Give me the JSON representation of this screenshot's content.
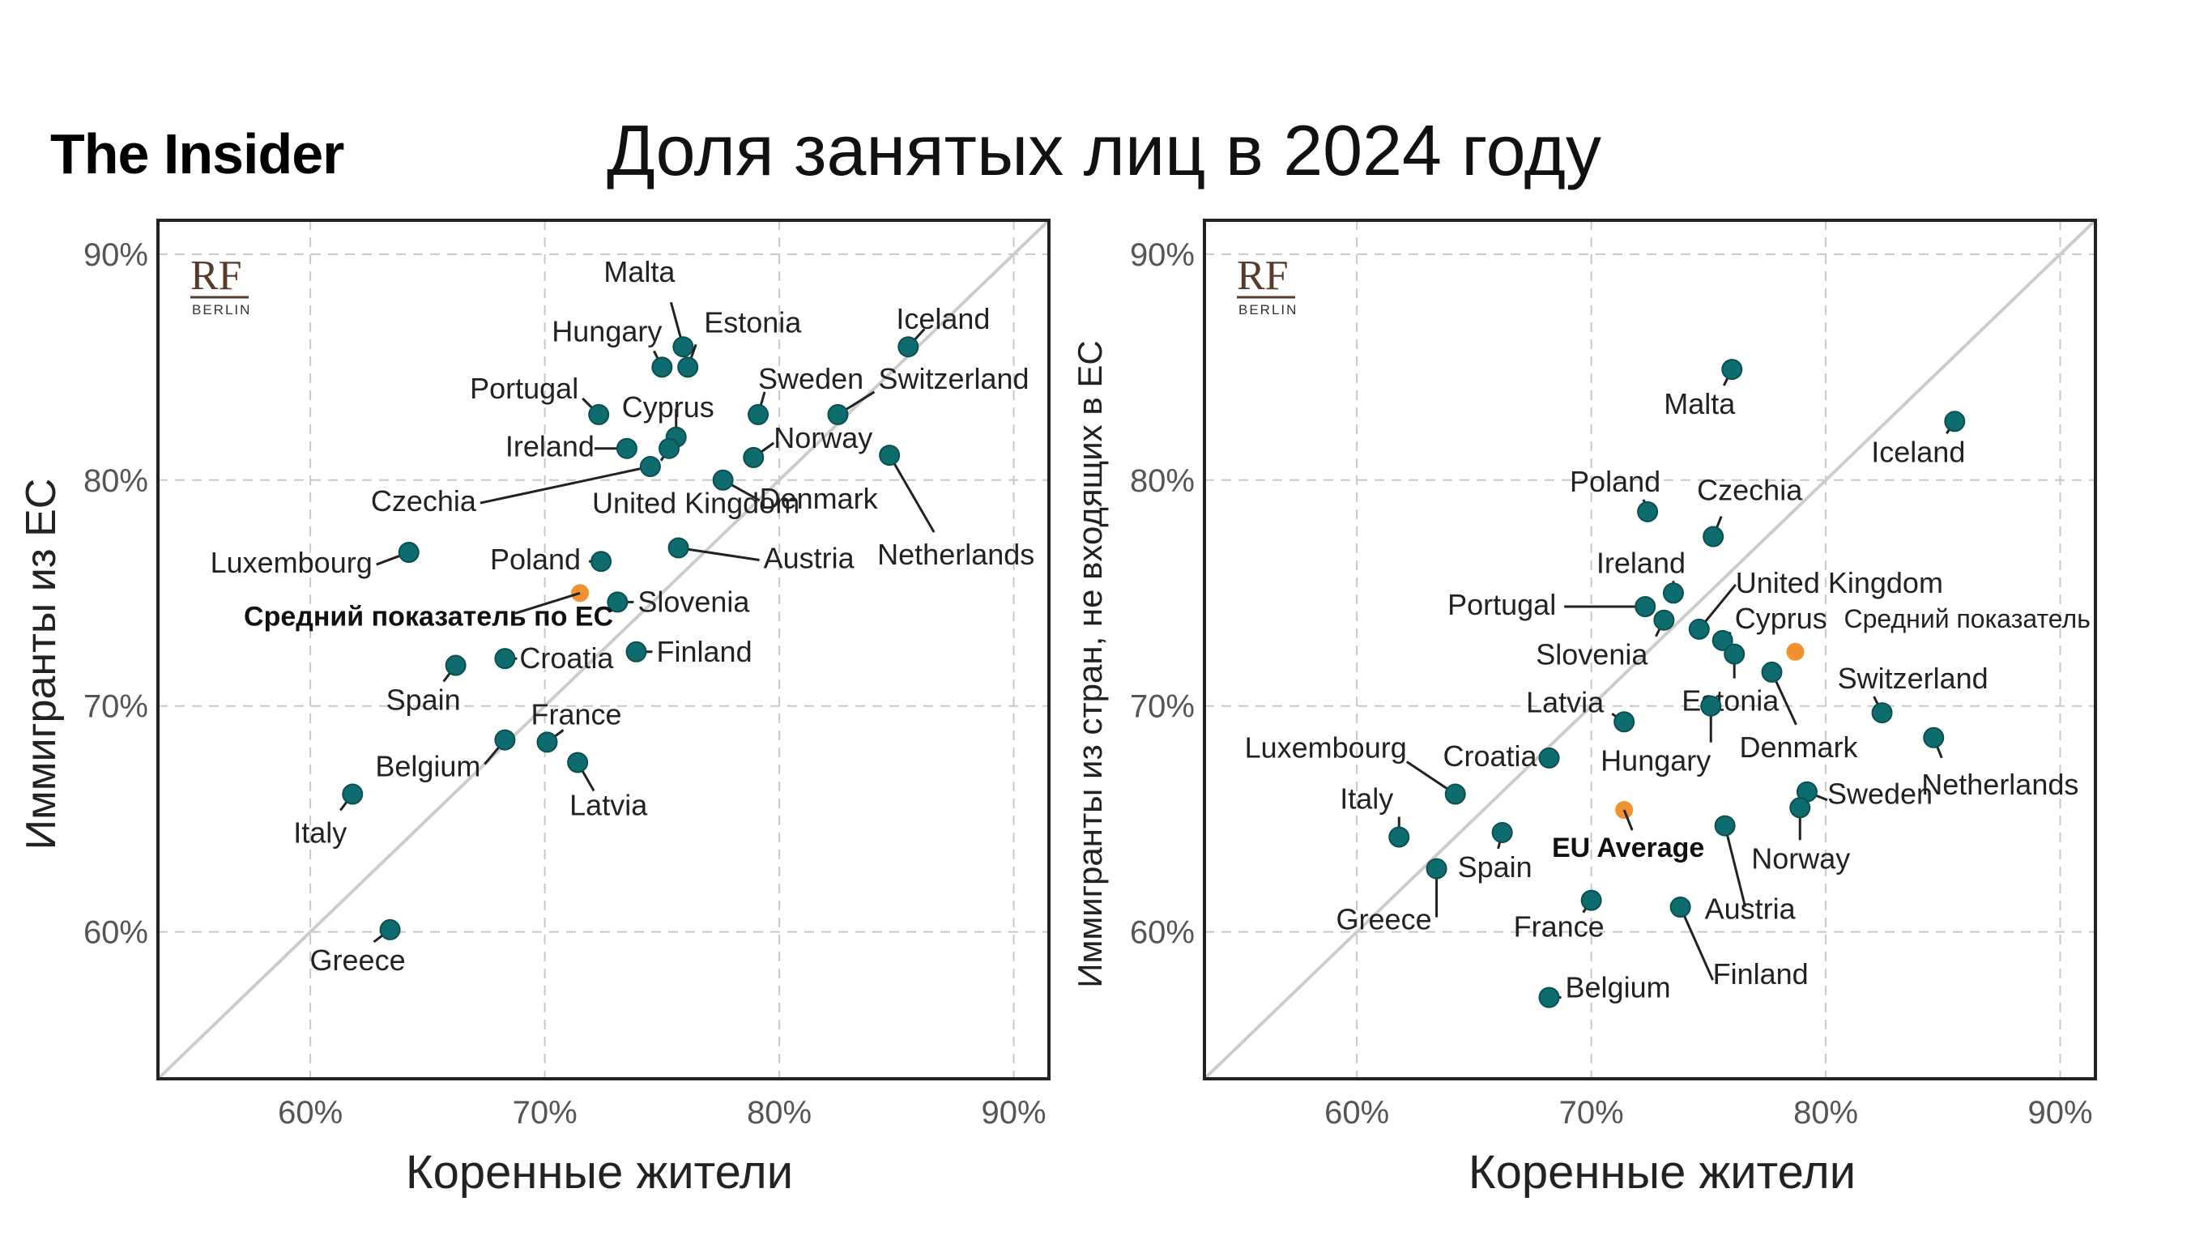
{
  "brand": "The Insider",
  "title": "Доля занятых лиц в 2024 году",
  "colors": {
    "point": "#0e6b6e",
    "average": "#f0922e",
    "diagonal": "#cccccc",
    "grid": "#c8c8c8",
    "logo": "#5a3a2a"
  },
  "logo": {
    "main": "RF",
    "sub": "BERLIN"
  },
  "chart_data": [
    {
      "type": "scatter",
      "xlabel": "Коренные жители",
      "ylabel": "Иммигранты из ЕС",
      "xlim": [
        53.5,
        91.5
      ],
      "ylim": [
        53.5,
        91.5
      ],
      "x_ticks": [
        60,
        70,
        80,
        90
      ],
      "y_ticks": [
        60,
        70,
        80,
        90
      ],
      "tick_format": "{v}%",
      "grid": true,
      "diagonal": true,
      "average": {
        "name": "Средний показатель по ЕС",
        "x": 71.5,
        "y": 75.0
      },
      "points": [
        {
          "name": "Malta",
          "x": 75.9,
          "y": 85.9
        },
        {
          "name": "Estonia",
          "x": 76.1,
          "y": 85.0
        },
        {
          "name": "Hungary",
          "x": 75.0,
          "y": 85.0
        },
        {
          "name": "Iceland",
          "x": 85.5,
          "y": 85.9
        },
        {
          "name": "Sweden",
          "x": 79.1,
          "y": 82.9
        },
        {
          "name": "Switzerland",
          "x": 82.5,
          "y": 82.9
        },
        {
          "name": "Portugal",
          "x": 72.3,
          "y": 82.9
        },
        {
          "name": "Cyprus",
          "x": 75.6,
          "y": 81.9
        },
        {
          "name": "Ireland",
          "x": 73.5,
          "y": 81.4
        },
        {
          "name": "United Kingdom",
          "x": 75.3,
          "y": 81.4
        },
        {
          "name": "Czechia",
          "x": 74.5,
          "y": 80.6
        },
        {
          "name": "Norway",
          "x": 78.9,
          "y": 81.0
        },
        {
          "name": "Netherlands",
          "x": 84.7,
          "y": 81.1
        },
        {
          "name": "Denmark",
          "x": 77.6,
          "y": 80.0
        },
        {
          "name": "Luxembourg",
          "x": 64.2,
          "y": 76.8
        },
        {
          "name": "Poland",
          "x": 72.4,
          "y": 76.4
        },
        {
          "name": "Austria",
          "x": 75.7,
          "y": 77.0
        },
        {
          "name": "Slovenia",
          "x": 73.1,
          "y": 74.6
        },
        {
          "name": "Croatia",
          "x": 68.3,
          "y": 72.1
        },
        {
          "name": "Finland",
          "x": 73.9,
          "y": 72.4
        },
        {
          "name": "Spain",
          "x": 66.2,
          "y": 71.8
        },
        {
          "name": "France",
          "x": 70.1,
          "y": 68.4
        },
        {
          "name": "Belgium",
          "x": 68.3,
          "y": 68.5
        },
        {
          "name": "Latvia",
          "x": 71.4,
          "y": 67.5
        },
        {
          "name": "Italy",
          "x": 61.8,
          "y": 66.1
        },
        {
          "name": "Greece",
          "x": 63.4,
          "y": 60.1
        }
      ]
    },
    {
      "type": "scatter",
      "xlabel": "Коренные жители",
      "ylabel": "Иммигранты из стран, не входящих в ЕС",
      "xlim": [
        53.5,
        91.5
      ],
      "ylim": [
        53.5,
        91.5
      ],
      "x_ticks": [
        60,
        70,
        80,
        90
      ],
      "y_ticks": [
        60,
        70,
        80,
        90
      ],
      "tick_format": "{v}%",
      "grid": true,
      "diagonal": true,
      "averages": [
        {
          "name": "Средний показатель",
          "x": 78.7,
          "y": 72.4
        },
        {
          "name": "EU Average",
          "x": 71.4,
          "y": 65.4
        }
      ],
      "points": [
        {
          "name": "Malta",
          "x": 76.0,
          "y": 84.9
        },
        {
          "name": "Iceland",
          "x": 85.5,
          "y": 82.6
        },
        {
          "name": "Poland",
          "x": 72.4,
          "y": 78.6
        },
        {
          "name": "Czechia",
          "x": 75.2,
          "y": 77.5
        },
        {
          "name": "Ireland",
          "x": 73.5,
          "y": 75.0
        },
        {
          "name": "United Kingdom",
          "x": 74.6,
          "y": 73.4
        },
        {
          "name": "Portugal",
          "x": 72.3,
          "y": 74.4
        },
        {
          "name": "Slovenia",
          "x": 73.1,
          "y": 73.8
        },
        {
          "name": "Cyprus",
          "x": 75.6,
          "y": 72.9
        },
        {
          "name": "Estonia",
          "x": 76.1,
          "y": 72.3
        },
        {
          "name": "Denmark",
          "x": 77.7,
          "y": 71.5
        },
        {
          "name": "Switzerland",
          "x": 82.4,
          "y": 69.7
        },
        {
          "name": "Netherlands",
          "x": 84.6,
          "y": 68.6
        },
        {
          "name": "Latvia",
          "x": 71.4,
          "y": 69.3
        },
        {
          "name": "Hungary",
          "x": 75.1,
          "y": 70.0
        },
        {
          "name": "Luxembourg",
          "x": 64.2,
          "y": 66.1
        },
        {
          "name": "Croatia",
          "x": 68.2,
          "y": 67.7
        },
        {
          "name": "Sweden",
          "x": 79.2,
          "y": 66.2
        },
        {
          "name": "Norway",
          "x": 78.9,
          "y": 65.5
        },
        {
          "name": "Italy",
          "x": 61.8,
          "y": 64.2
        },
        {
          "name": "Spain",
          "x": 66.2,
          "y": 64.4
        },
        {
          "name": "Greece",
          "x": 63.4,
          "y": 62.8
        },
        {
          "name": "Austria",
          "x": 75.7,
          "y": 64.7
        },
        {
          "name": "France",
          "x": 70.0,
          "y": 61.4
        },
        {
          "name": "Finland",
          "x": 73.8,
          "y": 61.1
        },
        {
          "name": "Belgium",
          "x": 68.2,
          "y": 57.1
        }
      ]
    }
  ]
}
